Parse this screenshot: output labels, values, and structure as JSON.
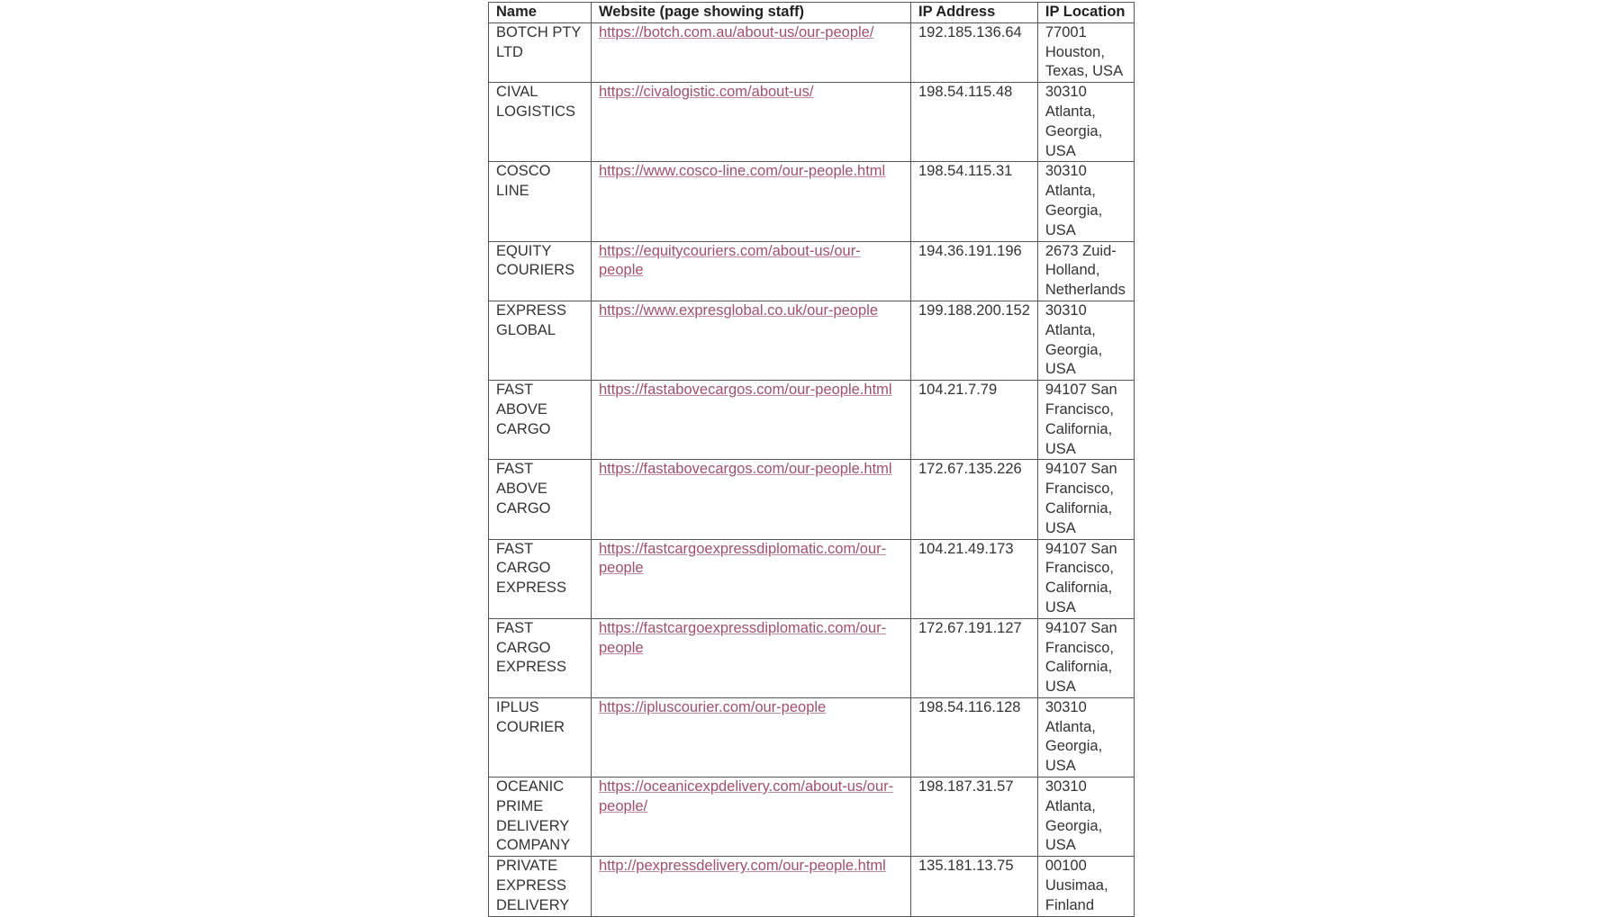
{
  "table": {
    "headers": [
      "Name",
      "Website (page showing staff)",
      "IP Address",
      "IP Location"
    ],
    "rows": [
      {
        "name": "BOTCH PTY LTD",
        "website": "https://botch.com.au/about-us/our-people/",
        "ip": "192.185.136.64",
        "location": "77001 Houston, Texas, USA"
      },
      {
        "name": "CIVAL LOGISTICS",
        "website": "https://civalogistic.com/about-us/",
        "ip": "198.54.115.48",
        "location": "30310 Atlanta, Georgia, USA"
      },
      {
        "name": "COSCO LINE",
        "website": "https://www.cosco-line.com/our-people.html",
        "ip": "198.54.115.31",
        "location": "30310 Atlanta, Georgia, USA"
      },
      {
        "name": "EQUITY COURIERS",
        "website": "https://equitycouriers.com/about-us/our-people",
        "ip": "194.36.191.196",
        "location": "2673 Zuid-Holland, Netherlands"
      },
      {
        "name": "EXPRESS GLOBAL",
        "website": "https://www.expresglobal.co.uk/our-people",
        "ip": "199.188.200.152",
        "location": "30310 Atlanta, Georgia, USA"
      },
      {
        "name": "FAST ABOVE CARGO",
        "website": "https://fastabovecargos.com/our-people.html",
        "ip": "104.21.7.79",
        "location": "94107 San Francisco, California, USA"
      },
      {
        "name": "FAST ABOVE CARGO",
        "website": "https://fastabovecargos.com/our-people.html",
        "ip": "172.67.135.226",
        "location": "94107 San Francisco, California, USA"
      },
      {
        "name": "FAST CARGO EXPRESS",
        "website": "https://fastcargoexpressdiplomatic.com/our-people",
        "ip": "104.21.49.173",
        "location": "94107 San Francisco, California, USA"
      },
      {
        "name": "FAST CARGO EXPRESS",
        "website": "https://fastcargoexpressdiplomatic.com/our-people",
        "ip": "172.67.191.127",
        "location": "94107 San Francisco, California, USA"
      },
      {
        "name": "IPLUS COURIER",
        "website": "https://ipluscourier.com/our-people",
        "ip": "198.54.116.128",
        "location": "30310 Atlanta, Georgia, USA"
      },
      {
        "name": "OCEANIC PRIME DELIVERY COMPANY",
        "website": "https://oceanicexpdelivery.com/about-us/our-people/",
        "ip": "198.187.31.57",
        "location": "30310 Atlanta, Georgia, USA"
      },
      {
        "name": "PRIVATE EXPRESS DELIVERY",
        "website": "http://pexpressdelivery.com/our-people.html",
        "ip": "135.181.13.75",
        "location": "00100 Uusimaa, Finland"
      }
    ]
  },
  "colors": {
    "link": "#a0506e",
    "border": "#555555"
  }
}
